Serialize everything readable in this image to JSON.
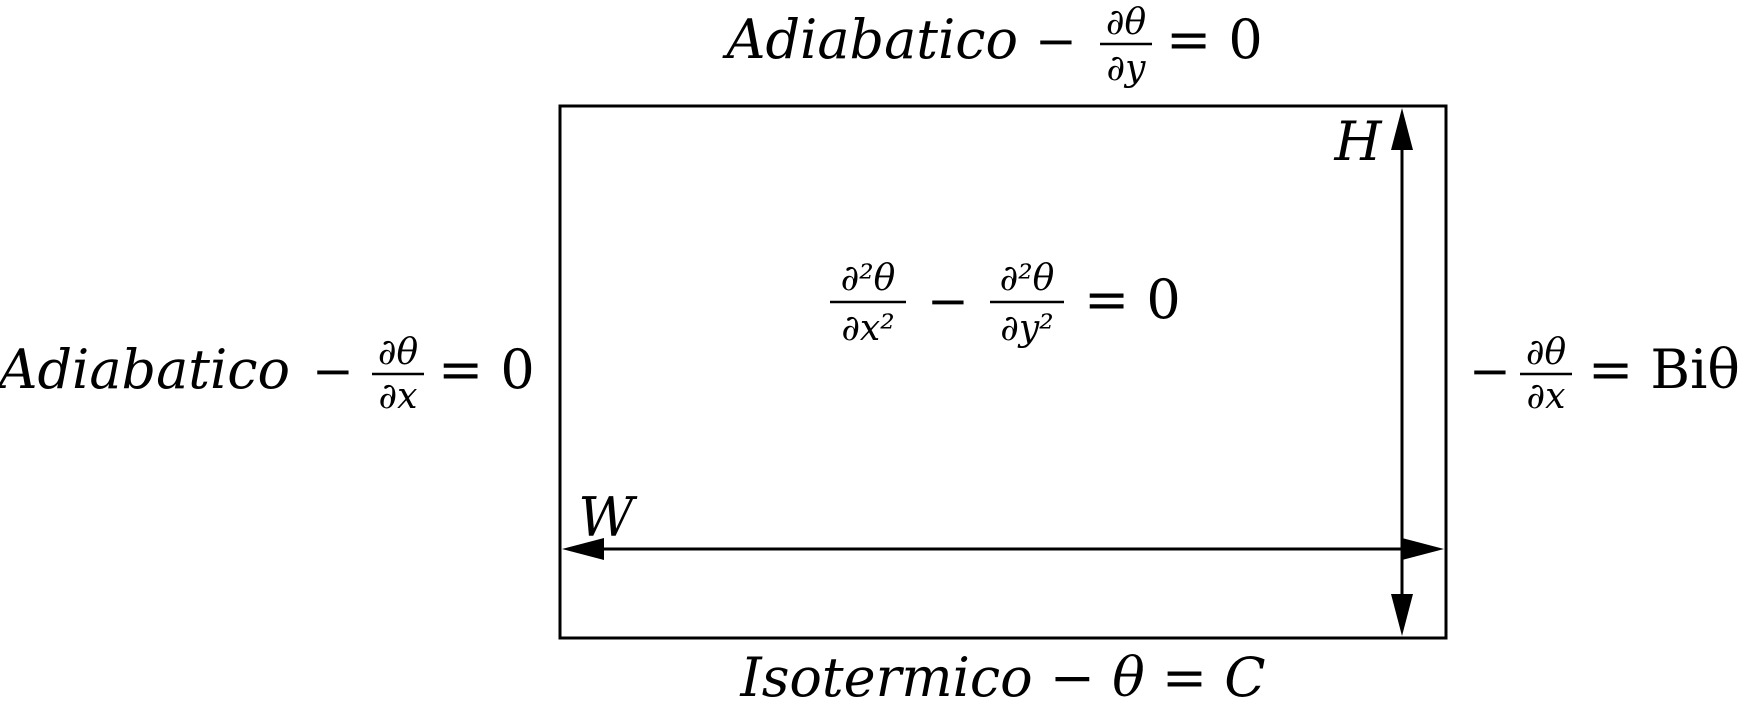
{
  "diagram": {
    "top_condition": {
      "word": "Adiabatico",
      "minus": "−",
      "frac_num": "∂θ",
      "frac_den": "∂y",
      "rhs": "= 0"
    },
    "left_condition": {
      "word": "Adiabatico",
      "minus": "−",
      "frac_num": "∂θ",
      "frac_den": "∂x",
      "rhs": "= 0"
    },
    "right_condition": {
      "minus": "−",
      "frac_num": "∂θ",
      "frac_den": "∂x",
      "rhs": "= Biθ"
    },
    "bottom_condition": {
      "text": "Isotermico − θ = C"
    },
    "governing_equation": {
      "frac1_num": "∂²θ",
      "frac1_den": "∂x²",
      "minus": "−",
      "frac2_num": "∂²θ",
      "frac2_den": "∂y²",
      "rhs": "= 0"
    },
    "height_label": "H",
    "width_label": "W"
  }
}
